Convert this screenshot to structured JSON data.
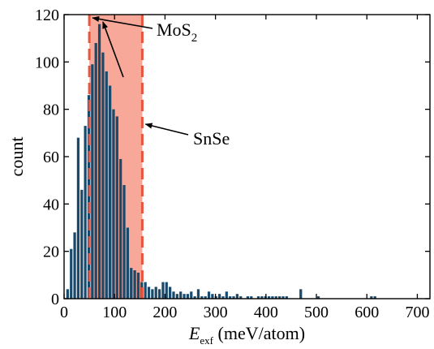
{
  "chart_data": {
    "type": "bar",
    "xlabel": {
      "symbol": "E",
      "subscript": "exf",
      "unit": "(meV/atom)"
    },
    "ylabel": "count",
    "xlim": [
      0,
      725
    ],
    "ylim": [
      0,
      120
    ],
    "xticks": [
      0,
      100,
      200,
      300,
      400,
      500,
      600,
      700
    ],
    "yticks": [
      0,
      20,
      40,
      60,
      80,
      100,
      120
    ],
    "bin_width": 7,
    "x": [
      7,
      14,
      21,
      28,
      35,
      42,
      49,
      56,
      63,
      70,
      77,
      84,
      91,
      98,
      105,
      112,
      119,
      126,
      133,
      140,
      147,
      154,
      161,
      168,
      175,
      182,
      189,
      196,
      203,
      210,
      217,
      224,
      231,
      238,
      245,
      252,
      259,
      266,
      273,
      280,
      287,
      294,
      301,
      308,
      315,
      322,
      329,
      336,
      343,
      350,
      357,
      364,
      371,
      378,
      385,
      392,
      399,
      406,
      413,
      420,
      427,
      434,
      441,
      469,
      504,
      609,
      616
    ],
    "values": [
      4,
      21,
      28,
      68,
      46,
      73,
      86,
      99,
      108,
      116,
      104,
      96,
      90,
      80,
      77,
      59,
      48,
      30,
      13,
      12,
      11,
      7,
      7,
      5,
      4,
      5,
      4,
      7,
      7,
      5,
      3,
      2,
      3,
      2,
      2,
      3,
      1,
      4,
      1,
      1,
      3,
      2,
      1,
      2,
      1,
      3,
      1,
      1,
      2,
      1,
      0,
      1,
      1,
      0,
      1,
      1,
      1,
      1,
      1,
      1,
      1,
      1,
      1,
      4,
      1,
      1,
      1
    ],
    "bar_color": "#1a4a6b",
    "highlight_band": {
      "from": 50,
      "to": 155,
      "fill": "#f7a898",
      "edge": "#e8543c"
    },
    "annotations": [
      {
        "text": "MoS",
        "subscript": "2",
        "x": 50,
        "y": 120
      },
      {
        "text": "SnSe",
        "x": 155,
        "y": 85
      }
    ]
  }
}
